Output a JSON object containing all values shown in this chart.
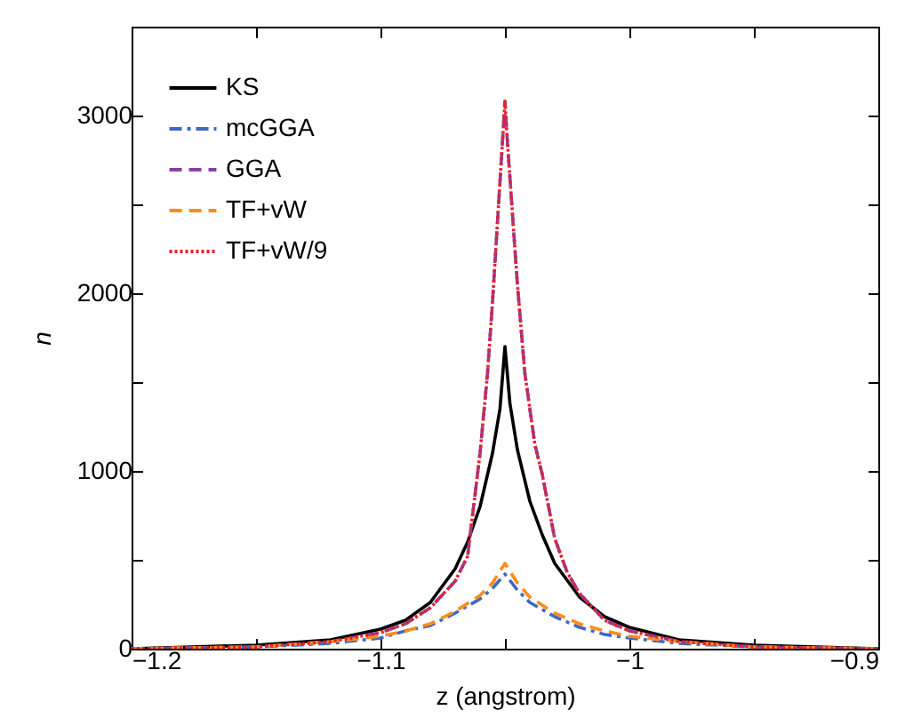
{
  "chart_data": {
    "type": "line",
    "xlabel": "z (angstrom)",
    "ylabel": "n",
    "xlim": [
      -1.2,
      -0.9
    ],
    "ylim": [
      0,
      3500
    ],
    "xticks": [
      {
        "value": -1.2,
        "label": "−1.2"
      },
      {
        "value": -1.15,
        "label": null
      },
      {
        "value": -1.1,
        "label": "−1.1"
      },
      {
        "value": -1.05,
        "label": null
      },
      {
        "value": -1,
        "label": "−1"
      },
      {
        "value": -0.95,
        "label": null
      },
      {
        "value": -0.9,
        "label": "−0.9"
      }
    ],
    "yticks": [
      0,
      {
        "value": 500,
        "label": null
      },
      1000,
      {
        "value": 1500,
        "label": null
      },
      2000,
      {
        "value": 2500,
        "label": null
      },
      3000
    ],
    "grid": false,
    "legend": "top left",
    "series": [
      {
        "name": "KS",
        "color": "#000000",
        "line_style": "solid",
        "x": [
          -1.2,
          -1.15,
          -1.12,
          -1.1,
          -1.09,
          -1.08,
          -1.07,
          -1.065,
          -1.06,
          -1.055,
          -1.052,
          -1.05,
          -1.048,
          -1.045,
          -1.04,
          -1.035,
          -1.03,
          -1.02,
          -1.01,
          -1,
          -0.98,
          -0.95,
          -0.9
        ],
        "values": [
          0,
          20,
          50,
          110,
          160,
          260,
          450,
          600,
          800,
          1100,
          1350,
          1700,
          1380,
          1120,
          830,
          640,
          480,
          290,
          180,
          120,
          50,
          20,
          0
        ]
      },
      {
        "name": "mcGGA",
        "color": "#3f68c2",
        "line_style": "dashdot",
        "x": [
          -1.2,
          -1.15,
          -1.12,
          -1.1,
          -1.09,
          -1.08,
          -1.07,
          -1.06,
          -1.055,
          -1.05,
          -1.045,
          -1.04,
          -1.03,
          -1.02,
          -1.01,
          -1,
          -0.98,
          -0.95,
          -0.9
        ],
        "values": [
          0,
          10,
          30,
          60,
          100,
          130,
          200,
          280,
          340,
          420,
          330,
          260,
          180,
          120,
          80,
          60,
          30,
          10,
          0
        ]
      },
      {
        "name": "GGA",
        "color": "#8a3fa6",
        "line_style": "dashed",
        "x": [
          -1.2,
          -1.15,
          -1.12,
          -1.1,
          -1.09,
          -1.08,
          -1.07,
          -1.065,
          -1.06,
          -1.057,
          -1.055,
          -1.053,
          -1.051,
          -1.05,
          -1.049,
          -1.047,
          -1.045,
          -1.042,
          -1.038,
          -1.035,
          -1.03,
          -1.025,
          -1.02,
          -1.01,
          -1,
          -0.98,
          -0.95,
          -0.9
        ],
        "values": [
          0,
          10,
          40,
          90,
          140,
          230,
          380,
          520,
          1100,
          1550,
          1950,
          2400,
          2850,
          3080,
          2850,
          2450,
          2050,
          1550,
          1150,
          980,
          620,
          430,
          310,
          160,
          100,
          40,
          10,
          0
        ]
      },
      {
        "name": "TF+vW",
        "color": "#ff8c1a",
        "line_style": "dashed",
        "x": [
          -1.2,
          -1.15,
          -1.12,
          -1.1,
          -1.09,
          -1.08,
          -1.07,
          -1.06,
          -1.055,
          -1.05,
          -1.045,
          -1.04,
          -1.03,
          -1.02,
          -1.01,
          -1,
          -0.98,
          -0.95,
          -0.9
        ],
        "values": [
          0,
          10,
          40,
          70,
          100,
          140,
          210,
          300,
          370,
          480,
          370,
          290,
          200,
          140,
          100,
          70,
          40,
          10,
          0
        ]
      },
      {
        "name": "TF+vW/9",
        "color": "#e8202a",
        "line_style": "dotted",
        "x": [
          -1.2,
          -1.15,
          -1.12,
          -1.1,
          -1.09,
          -1.08,
          -1.07,
          -1.065,
          -1.06,
          -1.057,
          -1.055,
          -1.053,
          -1.051,
          -1.05,
          -1.049,
          -1.047,
          -1.045,
          -1.042,
          -1.038,
          -1.035,
          -1.03,
          -1.025,
          -1.02,
          -1.01,
          -1,
          -0.98,
          -0.95,
          -0.9
        ],
        "values": [
          0,
          10,
          40,
          90,
          140,
          230,
          380,
          520,
          1100,
          1550,
          1950,
          2400,
          2850,
          3080,
          2850,
          2450,
          2050,
          1550,
          1150,
          980,
          620,
          430,
          310,
          160,
          100,
          40,
          10,
          0
        ]
      }
    ]
  }
}
